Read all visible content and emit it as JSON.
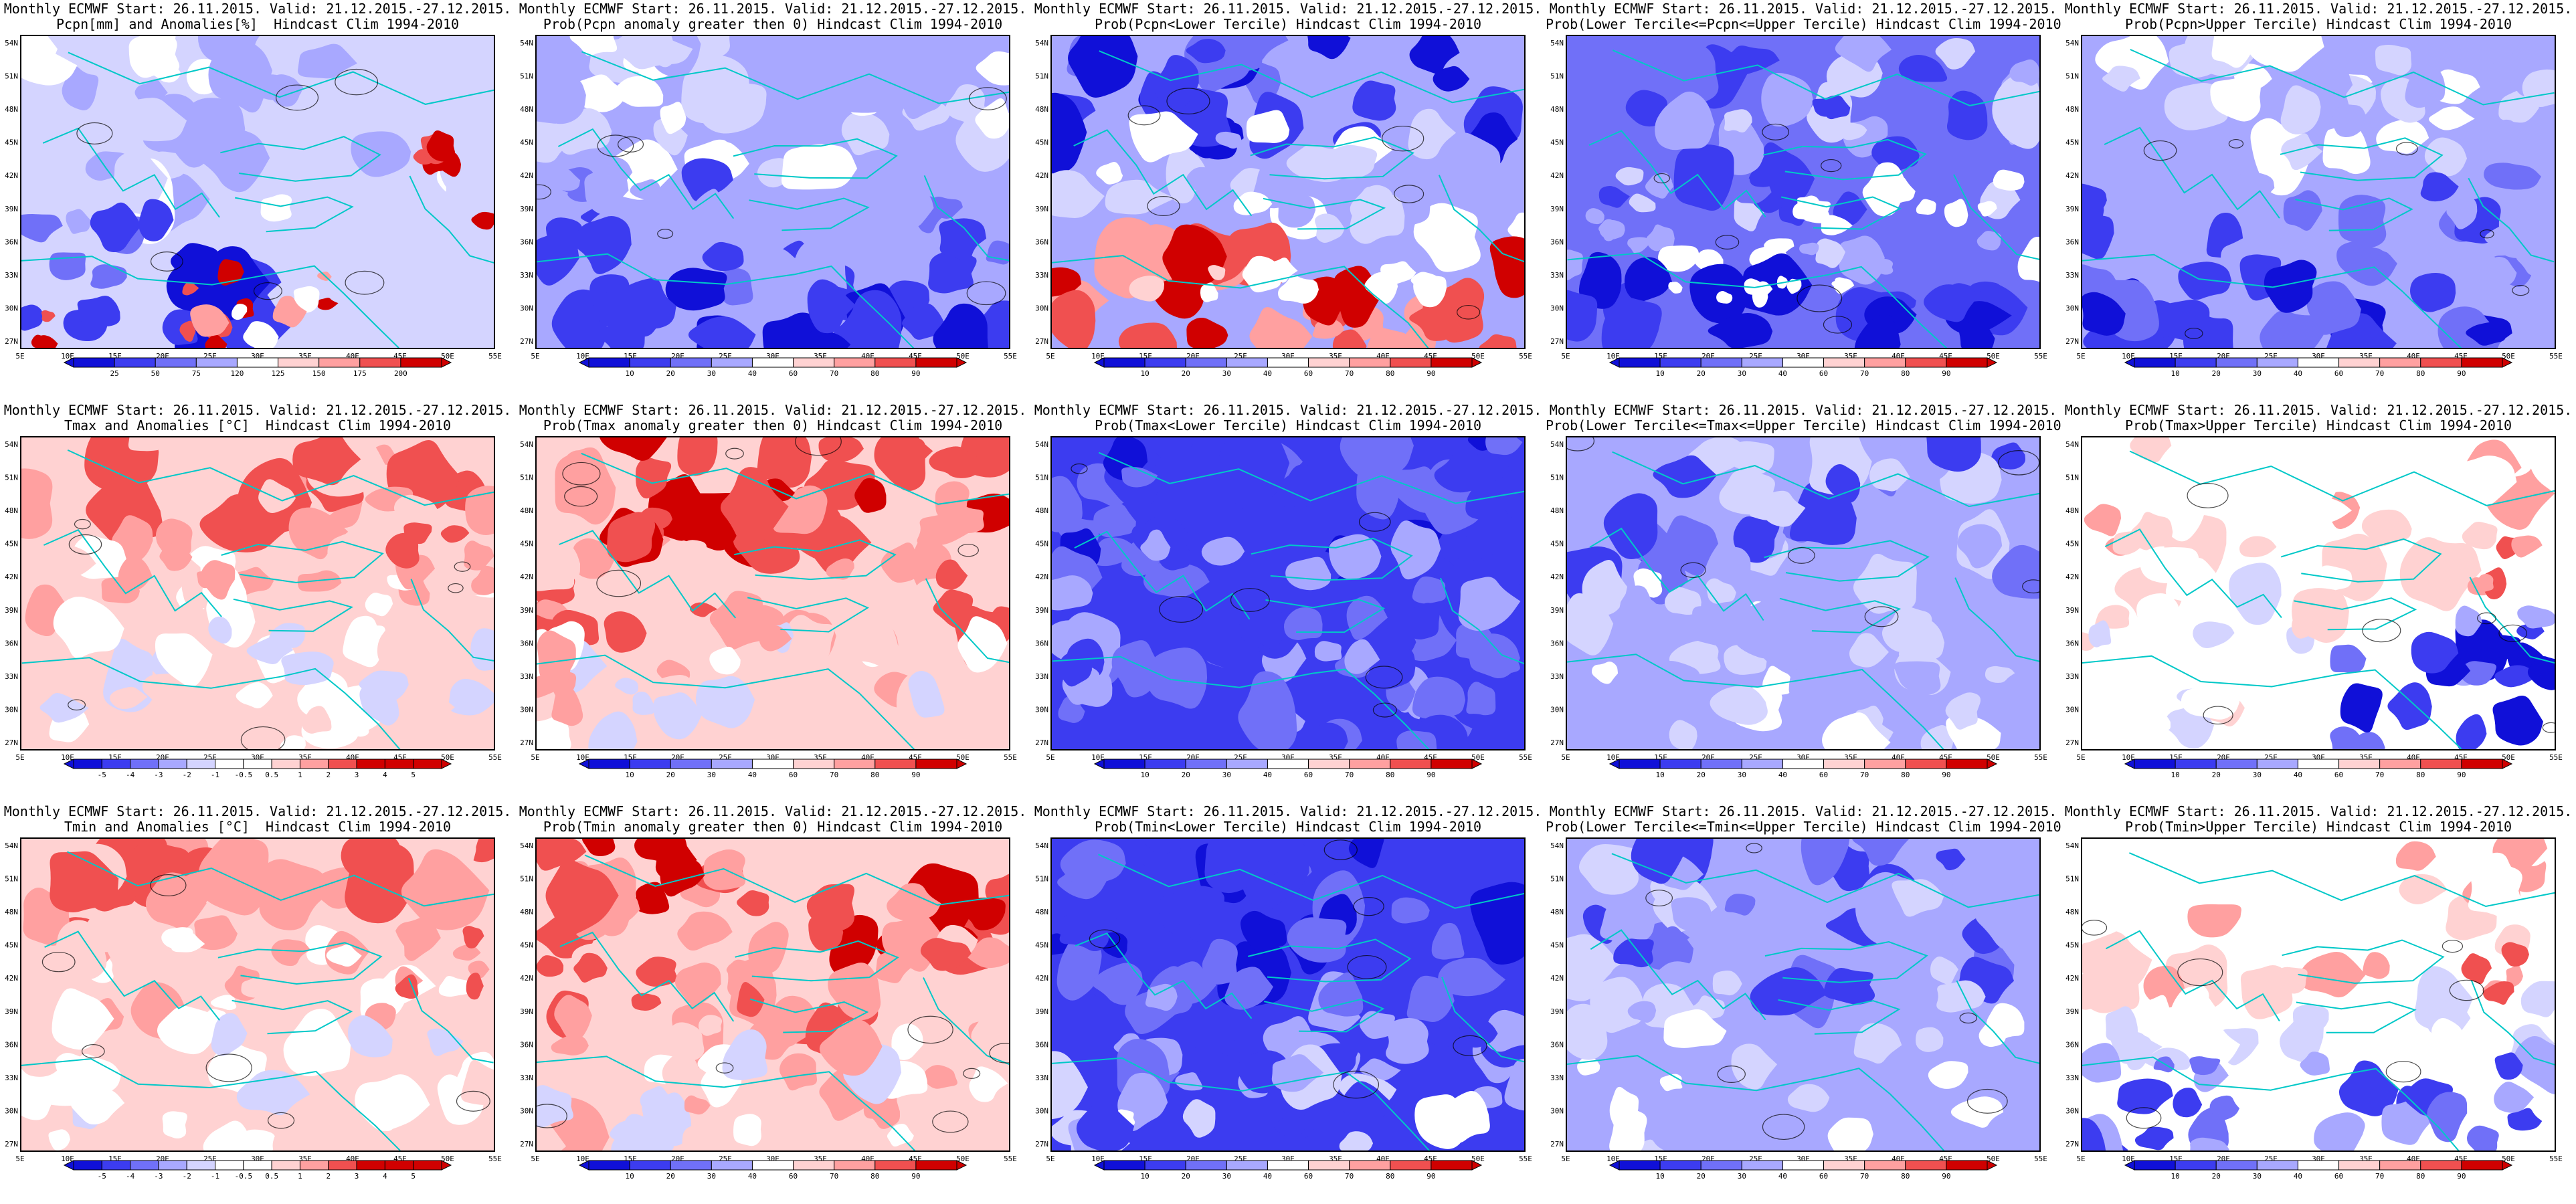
{
  "colors": {
    "dark_blue": "#1010d8",
    "blue": "#3c3cf0",
    "mid_blue": "#7070f8",
    "light_blue": "#a8a8ff",
    "pale_blue": "#d4d4ff",
    "white": "#ffffff",
    "pale_red": "#ffd2d2",
    "light_red": "#ffa0a0",
    "red": "#f05050",
    "dark_red": "#d00000",
    "coast": "#00c8c8",
    "contour": "#000000"
  },
  "lat_ticks": [
    "54N",
    "51N",
    "48N",
    "45N",
    "42N",
    "39N",
    "36N",
    "33N",
    "30N",
    "27N"
  ],
  "lon_ticks": [
    "5E",
    "10E",
    "15E",
    "20E",
    "25E",
    "30E",
    "35E",
    "40E",
    "45E",
    "50E",
    "55E"
  ],
  "panels": [
    {
      "title1": "Monthly ECMWF Start: 26.11.2015. Valid: 21.12.2015.-27.12.2015.",
      "title2": "Pcpn[mm] and Anomalies[%]  Hindcast Clim 1994-2010",
      "cbar": [
        "25",
        "50",
        "75",
        "120",
        "125",
        "150",
        "175",
        "200"
      ],
      "pattern": "pcpn_anom"
    },
    {
      "title1": "Monthly ECMWF Start: 26.11.2015. Valid: 21.12.2015.-27.12.2015.",
      "title2": "Prob(Pcpn anomaly greater then 0) Hindcast Clim 1994-2010",
      "cbar": [
        "10",
        "20",
        "30",
        "40",
        "60",
        "70",
        "80",
        "90"
      ],
      "pattern": "pcpn_prob_pos"
    },
    {
      "title1": "Monthly ECMWF Start: 26.11.2015. Valid: 21.12.2015.-27.12.2015.",
      "title2": "Prob(Pcpn<Lower Tercile) Hindcast Clim 1994-2010",
      "cbar": [
        "10",
        "20",
        "30",
        "40",
        "60",
        "70",
        "80",
        "90"
      ],
      "pattern": "pcpn_lower"
    },
    {
      "title1": "Monthly ECMWF Start: 26.11.2015. Valid: 21.12.2015.-27.12.2015.",
      "title2": "Prob(Lower Tercile<=Pcpn<=Upper Tercile) Hindcast Clim 1994-2010",
      "cbar": [
        "10",
        "20",
        "30",
        "40",
        "60",
        "70",
        "80",
        "90"
      ],
      "pattern": "pcpn_middle"
    },
    {
      "title1": "Monthly ECMWF Start: 26.11.2015. Valid: 21.12.2015.-27.12.2015.",
      "title2": "Prob(Pcpn>Upper Tercile) Hindcast Clim 1994-2010",
      "cbar": [
        "10",
        "20",
        "30",
        "40",
        "60",
        "70",
        "80",
        "90"
      ],
      "pattern": "pcpn_upper"
    },
    {
      "title1": "Monthly ECMWF Start: 26.11.2015. Valid: 21.12.2015.-27.12.2015.",
      "title2": "Tmax and Anomalies [°C]  Hindcast Clim 1994-2010",
      "cbar": [
        "-5",
        "-4",
        "-3",
        "-2",
        "-1",
        "-0.5",
        "0.5",
        "1",
        "2",
        "3",
        "4",
        "5"
      ],
      "pattern": "t_anom"
    },
    {
      "title1": "Monthly ECMWF Start: 26.11.2015. Valid: 21.12.2015.-27.12.2015.",
      "title2": "Prob(Tmax anomaly greater then 0) Hindcast Clim 1994-2010",
      "cbar": [
        "10",
        "20",
        "30",
        "40",
        "60",
        "70",
        "80",
        "90"
      ],
      "pattern": "t_prob_pos"
    },
    {
      "title1": "Monthly ECMWF Start: 26.11.2015. Valid: 21.12.2015.-27.12.2015.",
      "title2": "Prob(Tmax<Lower Tercile) Hindcast Clim 1994-2010",
      "cbar": [
        "10",
        "20",
        "30",
        "40",
        "60",
        "70",
        "80",
        "90"
      ],
      "pattern": "t_lower"
    },
    {
      "title1": "Monthly ECMWF Start: 26.11.2015. Valid: 21.12.2015.-27.12.2015.",
      "title2": "Prob(Lower Tercile<=Tmax<=Upper Tercile) Hindcast Clim 1994-2010",
      "cbar": [
        "10",
        "20",
        "30",
        "40",
        "60",
        "70",
        "80",
        "90"
      ],
      "pattern": "t_middle"
    },
    {
      "title1": "Monthly ECMWF Start: 26.11.2015. Valid: 21.12.2015.-27.12.2015.",
      "title2": "Prob(Tmax>Upper Tercile) Hindcast Clim 1994-2010",
      "cbar": [
        "10",
        "20",
        "30",
        "40",
        "60",
        "70",
        "80",
        "90"
      ],
      "pattern": "t_upper"
    },
    {
      "title1": "Monthly ECMWF Start: 26.11.2015. Valid: 21.12.2015.-27.12.2015.",
      "title2": "Tmin and Anomalies [°C]  Hindcast Clim 1994-2010",
      "cbar": [
        "-5",
        "-4",
        "-3",
        "-2",
        "-1",
        "-0.5",
        "0.5",
        "1",
        "2",
        "3",
        "4",
        "5"
      ],
      "pattern": "t_anom"
    },
    {
      "title1": "Monthly ECMWF Start: 26.11.2015. Valid: 21.12.2015.-27.12.2015.",
      "title2": "Prob(Tmin anomaly greater then 0) Hindcast Clim 1994-2010",
      "cbar": [
        "10",
        "20",
        "30",
        "40",
        "60",
        "70",
        "80",
        "90"
      ],
      "pattern": "t_prob_pos"
    },
    {
      "title1": "Monthly ECMWF Start: 26.11.2015. Valid: 21.12.2015.-27.12.2015.",
      "title2": "Prob(Tmin<Lower Tercile) Hindcast Clim 1994-2010",
      "cbar": [
        "10",
        "20",
        "30",
        "40",
        "60",
        "70",
        "80",
        "90"
      ],
      "pattern": "tmin_lower"
    },
    {
      "title1": "Monthly ECMWF Start: 26.11.2015. Valid: 21.12.2015.-27.12.2015.",
      "title2": "Prob(Lower Tercile<=Tmin<=Upper Tercile) Hindcast Clim 1994-2010",
      "cbar": [
        "10",
        "20",
        "30",
        "40",
        "60",
        "70",
        "80",
        "90"
      ],
      "pattern": "t_middle"
    },
    {
      "title1": "Monthly ECMWF Start: 26.11.2015. Valid: 21.12.2015.-27.12.2015.",
      "title2": "Prob(Tmin>Upper Tercile) Hindcast Clim 1994-2010",
      "cbar": [
        "10",
        "20",
        "30",
        "40",
        "60",
        "70",
        "80",
        "90"
      ],
      "pattern": "tmin_upper"
    }
  ]
}
